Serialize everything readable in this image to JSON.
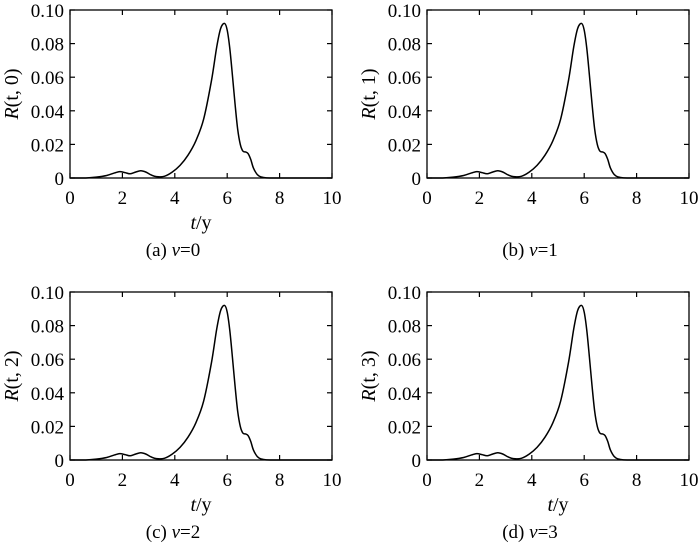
{
  "chart_data": [
    {
      "type": "line",
      "id": "a",
      "caption_prefix": "(a) ",
      "caption_var": "v",
      "caption_suffix": "=0",
      "ylabel_var": "R",
      "ylabel_args": "(t, 0)",
      "xlabel_var": "t",
      "xlabel_unit": "/y",
      "xlim": [
        0,
        10
      ],
      "ylim": [
        0,
        0.1
      ],
      "xticks": [
        0,
        2,
        4,
        6,
        8,
        10
      ],
      "yticks": [
        0,
        0.02,
        0.04,
        0.06,
        0.08,
        0.1
      ],
      "yticklabels": [
        "0",
        "0.02",
        "0.04",
        "0.06",
        "0.08",
        "0.10"
      ],
      "grid": false,
      "series": [
        {
          "x": [
            0.6,
            1.0,
            1.4,
            1.7,
            1.9,
            2.1,
            2.3,
            2.5,
            2.7,
            2.9,
            3.1,
            3.3,
            3.6,
            3.9,
            4.2,
            4.5,
            4.8,
            5.1,
            5.4,
            5.6,
            5.75,
            5.9,
            6.0,
            6.1,
            6.2,
            6.3,
            6.4,
            6.5,
            6.6,
            6.7,
            6.8,
            6.9,
            7.0,
            7.15,
            7.3,
            7.5,
            8.0,
            9.0
          ],
          "y": [
            0,
            0.0005,
            0.0015,
            0.003,
            0.0038,
            0.0032,
            0.0025,
            0.0035,
            0.0043,
            0.0035,
            0.0018,
            0.0008,
            0.001,
            0.0035,
            0.0075,
            0.0135,
            0.022,
            0.035,
            0.058,
            0.078,
            0.089,
            0.092,
            0.088,
            0.077,
            0.061,
            0.044,
            0.029,
            0.02,
            0.016,
            0.0155,
            0.0145,
            0.011,
            0.006,
            0.002,
            0.0006,
            0.0001,
            0,
            0
          ]
        }
      ]
    },
    {
      "type": "line",
      "id": "b",
      "caption_prefix": "(b) ",
      "caption_var": "v",
      "caption_suffix": "=1",
      "ylabel_var": "R",
      "ylabel_args": "(t, 1)",
      "xlabel_var": "",
      "xlabel_unit": "",
      "xlim": [
        0,
        10
      ],
      "ylim": [
        0,
        0.1
      ],
      "xticks": [
        0,
        2,
        4,
        6,
        8,
        10
      ],
      "yticks": [
        0,
        0.02,
        0.04,
        0.06,
        0.08,
        0.1
      ],
      "yticklabels": [
        "0",
        "0.02",
        "0.04",
        "0.06",
        "0.08",
        "0.10"
      ],
      "grid": false,
      "series": [
        {
          "x": [
            0.6,
            1.0,
            1.4,
            1.7,
            1.9,
            2.1,
            2.3,
            2.5,
            2.7,
            2.9,
            3.1,
            3.3,
            3.6,
            3.9,
            4.2,
            4.5,
            4.8,
            5.1,
            5.4,
            5.6,
            5.75,
            5.9,
            6.0,
            6.1,
            6.2,
            6.3,
            6.4,
            6.5,
            6.6,
            6.7,
            6.8,
            6.9,
            7.0,
            7.15,
            7.3,
            7.5,
            8.0,
            9.0
          ],
          "y": [
            0,
            0.0005,
            0.0015,
            0.003,
            0.0038,
            0.0032,
            0.0025,
            0.0035,
            0.0043,
            0.0035,
            0.0018,
            0.0008,
            0.001,
            0.0035,
            0.0075,
            0.0135,
            0.022,
            0.035,
            0.058,
            0.078,
            0.089,
            0.092,
            0.088,
            0.077,
            0.061,
            0.044,
            0.029,
            0.02,
            0.016,
            0.0155,
            0.0145,
            0.011,
            0.006,
            0.002,
            0.0006,
            0.0001,
            0,
            0
          ]
        }
      ]
    },
    {
      "type": "line",
      "id": "c",
      "caption_prefix": "(c) ",
      "caption_var": "v",
      "caption_suffix": "=2",
      "ylabel_var": "R",
      "ylabel_args": "(t, 2)",
      "xlabel_var": "t",
      "xlabel_unit": "/y",
      "xlim": [
        0,
        10
      ],
      "ylim": [
        0,
        0.1
      ],
      "xticks": [
        0,
        2,
        4,
        6,
        8,
        10
      ],
      "yticks": [
        0,
        0.02,
        0.04,
        0.06,
        0.08,
        0.1
      ],
      "yticklabels": [
        "0",
        "0.02",
        "0.04",
        "0.06",
        "0.08",
        "0.10"
      ],
      "grid": false,
      "series": [
        {
          "x": [
            0.6,
            1.0,
            1.4,
            1.7,
            1.9,
            2.1,
            2.3,
            2.5,
            2.7,
            2.9,
            3.1,
            3.3,
            3.6,
            3.9,
            4.2,
            4.5,
            4.8,
            5.1,
            5.4,
            5.6,
            5.75,
            5.9,
            6.0,
            6.1,
            6.2,
            6.3,
            6.4,
            6.5,
            6.6,
            6.7,
            6.8,
            6.9,
            7.0,
            7.15,
            7.3,
            7.5,
            8.0,
            9.0
          ],
          "y": [
            0,
            0.0005,
            0.0015,
            0.003,
            0.0038,
            0.0032,
            0.0025,
            0.0035,
            0.0043,
            0.0035,
            0.0018,
            0.0008,
            0.001,
            0.0035,
            0.0075,
            0.0135,
            0.022,
            0.035,
            0.058,
            0.078,
            0.089,
            0.092,
            0.088,
            0.077,
            0.061,
            0.044,
            0.029,
            0.02,
            0.016,
            0.0155,
            0.0145,
            0.011,
            0.006,
            0.002,
            0.0006,
            0.0001,
            0,
            0
          ]
        }
      ]
    },
    {
      "type": "line",
      "id": "d",
      "caption_prefix": "(d) ",
      "caption_var": "v",
      "caption_suffix": "=3",
      "ylabel_var": "R",
      "ylabel_args": "(t, 3)",
      "xlabel_var": "t",
      "xlabel_unit": "/y",
      "xlim": [
        0,
        10
      ],
      "ylim": [
        0,
        0.1
      ],
      "xticks": [
        0,
        2,
        4,
        6,
        8,
        10
      ],
      "yticks": [
        0,
        0.02,
        0.04,
        0.06,
        0.08,
        0.1
      ],
      "yticklabels": [
        "0",
        "0.02",
        "0.04",
        "0.06",
        "0.08",
        "0.10"
      ],
      "grid": false,
      "series": [
        {
          "x": [
            0.6,
            1.0,
            1.4,
            1.7,
            1.9,
            2.1,
            2.3,
            2.5,
            2.7,
            2.9,
            3.1,
            3.3,
            3.6,
            3.9,
            4.2,
            4.5,
            4.8,
            5.1,
            5.4,
            5.6,
            5.75,
            5.9,
            6.0,
            6.1,
            6.2,
            6.3,
            6.4,
            6.5,
            6.6,
            6.7,
            6.8,
            6.9,
            7.0,
            7.15,
            7.3,
            7.5,
            8.0,
            9.0
          ],
          "y": [
            0,
            0.0005,
            0.0015,
            0.003,
            0.0038,
            0.0032,
            0.0025,
            0.0035,
            0.0043,
            0.0035,
            0.0018,
            0.0008,
            0.001,
            0.0035,
            0.0075,
            0.0135,
            0.022,
            0.035,
            0.058,
            0.078,
            0.089,
            0.092,
            0.088,
            0.077,
            0.061,
            0.044,
            0.029,
            0.02,
            0.016,
            0.0155,
            0.0145,
            0.011,
            0.006,
            0.002,
            0.0006,
            0.0001,
            0,
            0
          ]
        }
      ]
    }
  ]
}
